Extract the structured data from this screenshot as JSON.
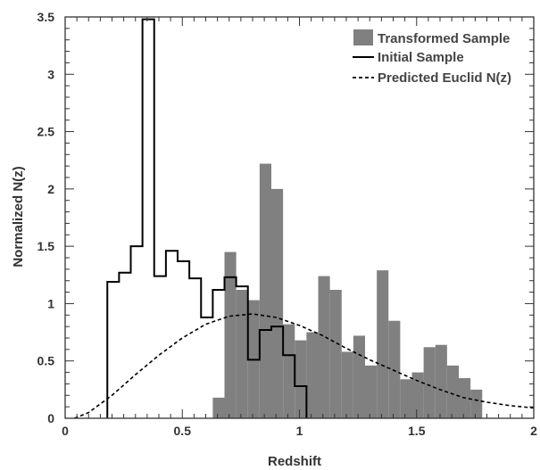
{
  "chart_data": {
    "type": "histogram",
    "xlabel": "Redshift",
    "ylabel": "Normalized N(z)",
    "xlim": [
      0,
      2
    ],
    "ylim": [
      0,
      3.5
    ],
    "x_ticks": [
      0,
      0.5,
      1,
      1.5,
      2
    ],
    "x_tick_labels": [
      "0",
      "0.5",
      "1",
      "1.5",
      "2"
    ],
    "y_ticks": [
      0,
      0.5,
      1,
      1.5,
      2,
      2.5,
      3,
      3.5
    ],
    "y_tick_labels": [
      "0",
      "0.5",
      "1",
      "1.5",
      "2",
      "2.5",
      "3",
      "3.5"
    ],
    "legend_position": "top-right",
    "grid": false,
    "colors": {
      "transformed_fill": "#808080",
      "line": "#000000",
      "axis": "#333333"
    },
    "series": [
      {
        "name": "Transformed Sample",
        "style": "filled-bars",
        "bin_edges": [
          0.63,
          0.68,
          0.73,
          0.78,
          0.83,
          0.88,
          0.93,
          0.98,
          1.03,
          1.08,
          1.13,
          1.18,
          1.23,
          1.28,
          1.33,
          1.38,
          1.43,
          1.48,
          1.53,
          1.58,
          1.63,
          1.68,
          1.73,
          1.78
        ],
        "values": [
          0.18,
          1.45,
          1.12,
          1.03,
          2.22,
          2.0,
          0.82,
          0.68,
          0.75,
          1.24,
          1.12,
          0.58,
          0.72,
          0.46,
          1.29,
          0.85,
          0.34,
          0.4,
          0.62,
          0.64,
          0.46,
          0.35,
          0.25
        ]
      },
      {
        "name": "Initial Sample",
        "style": "solid-step",
        "bin_edges": [
          0.18,
          0.23,
          0.28,
          0.33,
          0.38,
          0.43,
          0.48,
          0.53,
          0.58,
          0.63,
          0.68,
          0.73,
          0.78,
          0.83,
          0.88,
          0.93,
          0.98,
          1.03
        ],
        "values": [
          1.19,
          1.27,
          1.5,
          3.48,
          1.24,
          1.46,
          1.37,
          1.22,
          0.88,
          1.12,
          1.23,
          1.15,
          0.51,
          0.77,
          0.8,
          0.55,
          0.28
        ]
      },
      {
        "name": "Predicted Euclid N(z)",
        "style": "dashed-line",
        "x": [
          0.04,
          0.1,
          0.2,
          0.3,
          0.4,
          0.5,
          0.6,
          0.7,
          0.8,
          0.9,
          1.0,
          1.1,
          1.2,
          1.3,
          1.4,
          1.5,
          1.6,
          1.7,
          1.8,
          1.9,
          2.0
        ],
        "y": [
          0.0,
          0.05,
          0.2,
          0.38,
          0.55,
          0.7,
          0.82,
          0.89,
          0.91,
          0.88,
          0.81,
          0.72,
          0.61,
          0.51,
          0.42,
          0.33,
          0.25,
          0.18,
          0.14,
          0.11,
          0.09
        ]
      }
    ]
  }
}
